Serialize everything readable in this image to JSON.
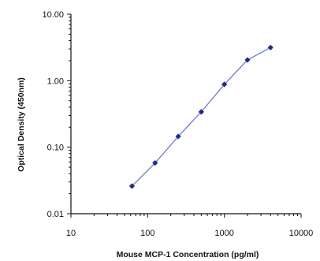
{
  "chart_data": {
    "type": "line",
    "xlabel": "Mouse MCP-1 Concentration (pg/ml)",
    "ylabel": "Optical Density (450nm)",
    "x_scale": "log",
    "y_scale": "log",
    "xlim": [
      10,
      10000
    ],
    "ylim": [
      0.01,
      10
    ],
    "x_ticks": [
      "10",
      "100",
      "1000",
      "10000"
    ],
    "y_ticks": [
      "0.01",
      "0.10",
      "1.00",
      "10.00"
    ],
    "grid": false,
    "series": [
      {
        "x": [
          62.5,
          125,
          250,
          500,
          1000,
          2000,
          4000
        ],
        "y": [
          0.026,
          0.058,
          0.145,
          0.34,
          0.88,
          2.05,
          3.15
        ]
      }
    ],
    "colors": {
      "line": "#7b84c9",
      "marker": "#1f2a8a"
    }
  }
}
